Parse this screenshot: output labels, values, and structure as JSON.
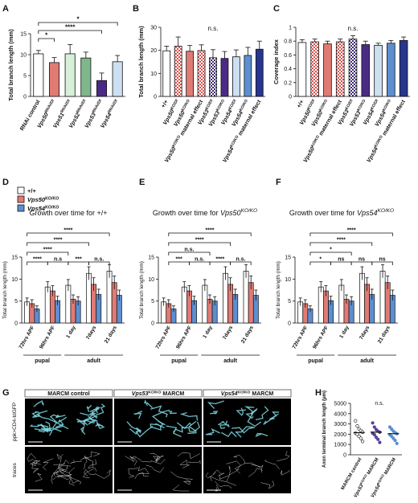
{
  "panels": {
    "A": "A",
    "B": "B",
    "C": "C",
    "D": "D",
    "E": "E",
    "F": "F",
    "G": "G",
    "H": "H"
  },
  "colors": {
    "white": "#ffffff",
    "salmon": "#e07b74",
    "mint": "#d8efd8",
    "green": "#7fb78a",
    "purple": "#4b2a86",
    "lightblue": "#cde0f2",
    "blue": "#5c8fd2",
    "navy": "#27358f",
    "checker_red": "#d9534f",
    "checker_purple": "#3d2a6e"
  },
  "legend_D": [
    {
      "label": "+/+",
      "color": "#ffffff"
    },
    {
      "label": "Vps50 KO/KO",
      "color": "#e07b74"
    },
    {
      "label": "Vps54 KO/KO",
      "color": "#5c8fd2"
    }
  ],
  "chart_data": [
    {
      "id": "A",
      "type": "bar",
      "ylabel": "Total branch length (mm)",
      "ylim": [
        0,
        15
      ],
      "yticks": [
        0,
        5,
        10,
        15
      ],
      "categories": [
        "RNAi control",
        "Vps50 RNAi/Df",
        "Vps51 RNAi/Df",
        "Vps52 RNAi/Df",
        "Vps53 RNAi/Df",
        "Vps54 RNAi/Df"
      ],
      "values": [
        10.2,
        8.1,
        10.2,
        9.2,
        3.8,
        8.3
      ],
      "errors": [
        0.8,
        1.2,
        2.2,
        1.4,
        1.8,
        1.5
      ],
      "fills": [
        "white",
        "salmon",
        "mint",
        "green",
        "purple",
        "lightblue"
      ],
      "significance": [
        {
          "from": 0,
          "to": 1,
          "label": "*"
        },
        {
          "from": 0,
          "to": 4,
          "label": "****"
        },
        {
          "from": 0,
          "to": 5,
          "label": "*"
        }
      ]
    },
    {
      "id": "B",
      "type": "bar",
      "ylabel": "Total branch length (mm)",
      "ylim": [
        0,
        30
      ],
      "yticks": [
        0,
        10,
        20,
        30
      ],
      "annotation": "n.s.",
      "categories": [
        "+/+",
        "Vps50 KO/Df",
        "Vps50 KO/KO",
        "Vps50 KO/KO maternal effect",
        "Vps53 KO/Df",
        "Vps53 KO/KO",
        "Vps54 KO/Df",
        "Vps54 KO/KO",
        "Vps54 KO/KO maternal effect"
      ],
      "values": [
        19.8,
        21.8,
        19.6,
        19.9,
        16.8,
        16.5,
        17.2,
        17.8,
        20.5
      ],
      "errors": [
        2.0,
        4.0,
        2.5,
        2.5,
        3.5,
        3.0,
        3.0,
        3.5,
        3.5
      ],
      "fills": [
        "white",
        "checker_red",
        "salmon",
        "checker_red",
        "checker_purple",
        "purple",
        "lightblue",
        "blue",
        "navy"
      ]
    },
    {
      "id": "C",
      "type": "bar",
      "ylabel": "Coverage index",
      "ylim": [
        0,
        1.0
      ],
      "yticks": [
        0.0,
        0.2,
        0.4,
        0.6,
        0.8,
        1.0
      ],
      "annotation": "n.s.",
      "categories": [
        "+/+",
        "Vps50 KO/Df",
        "Vps50 KO/KO",
        "Vps50 KO/KO maternal effect",
        "Vps53 KO/Df",
        "Vps53 KO/KO",
        "Vps54 KO/Df",
        "Vps54 KO/KO",
        "Vps54 KO/KO maternal effect"
      ],
      "values": [
        0.78,
        0.79,
        0.76,
        0.79,
        0.83,
        0.75,
        0.74,
        0.77,
        0.81
      ],
      "errors": [
        0.04,
        0.04,
        0.04,
        0.04,
        0.05,
        0.05,
        0.03,
        0.04,
        0.05
      ],
      "fills": [
        "white",
        "checker_red",
        "salmon",
        "checker_red",
        "checker_purple",
        "purple",
        "lightblue",
        "blue",
        "navy"
      ]
    },
    {
      "id": "D",
      "type": "bar",
      "title": "Growth over time for +/+",
      "ylabel": "Total branch length (mm)",
      "ylim": [
        0,
        15
      ],
      "yticks": [
        0,
        5,
        10,
        15
      ],
      "categories": [
        "72hrs APF",
        "96hrs APF",
        "1 day",
        "7days",
        "21 days"
      ],
      "groups": [
        {
          "label": "pupal",
          "from": 0,
          "to": 1
        },
        {
          "label": "adult",
          "from": 2,
          "to": 4
        }
      ],
      "series": [
        {
          "name": "+/+",
          "values": [
            4.8,
            8.2,
            8.6,
            11.3,
            11.8
          ],
          "errors": [
            0.9,
            1.2,
            1.3,
            1.5,
            1.5
          ]
        },
        {
          "name": "Vps50 KO/KO",
          "values": [
            4.4,
            7.3,
            5.4,
            8.8,
            9.2
          ],
          "errors": [
            0.9,
            1.2,
            1.0,
            1.5,
            1.5
          ]
        },
        {
          "name": "Vps54 KO/KO",
          "values": [
            3.2,
            5.1,
            5.0,
            6.5,
            6.3
          ],
          "errors": [
            0.7,
            1.0,
            1.0,
            1.2,
            1.2
          ]
        }
      ],
      "significance": [
        {
          "a": [
            0,
            0
          ],
          "b": [
            4,
            0
          ],
          "label": "****",
          "level": 4
        },
        {
          "a": [
            0,
            0
          ],
          "b": [
            3,
            0
          ],
          "label": "****",
          "level": 3
        },
        {
          "a": [
            0,
            0
          ],
          "b": [
            2,
            0
          ],
          "label": "****",
          "level": 2
        },
        {
          "a": [
            0,
            0
          ],
          "b": [
            1,
            0
          ],
          "label": "****",
          "level": 1
        },
        {
          "a": [
            1,
            0
          ],
          "b": [
            2,
            0
          ],
          "label": "n.s",
          "level": 1
        },
        {
          "a": [
            2,
            0
          ],
          "b": [
            3,
            0
          ],
          "label": "***",
          "level": 1
        },
        {
          "a": [
            3,
            0
          ],
          "b": [
            4,
            0
          ],
          "label": "n.s.",
          "level": 1
        }
      ]
    },
    {
      "id": "E",
      "type": "bar",
      "title": "Growth over time for Vps50 KO/KO",
      "ylabel": "Total branch length (mm)",
      "ylim": [
        0,
        15
      ],
      "yticks": [
        0,
        5,
        10,
        15
      ],
      "categories": [
        "72hrs APF",
        "96hrs APF",
        "1 day",
        "7days",
        "21 days"
      ],
      "groups": [
        {
          "label": "pupal",
          "from": 0,
          "to": 1
        },
        {
          "label": "adult",
          "from": 2,
          "to": 4
        }
      ],
      "series": [
        {
          "name": "+/+",
          "values": [
            4.8,
            8.2,
            8.6,
            11.3,
            11.8
          ],
          "errors": [
            0.9,
            1.2,
            1.3,
            1.5,
            1.5
          ]
        },
        {
          "name": "Vps50 KO/KO",
          "values": [
            4.4,
            7.3,
            5.4,
            8.8,
            9.2
          ],
          "errors": [
            0.9,
            1.2,
            1.0,
            1.5,
            1.5
          ]
        },
        {
          "name": "Vps54 KO/KO",
          "values": [
            3.2,
            5.1,
            5.0,
            6.5,
            6.3
          ],
          "errors": [
            0.7,
            1.0,
            1.0,
            1.2,
            1.2
          ]
        }
      ],
      "significance": [
        {
          "a": [
            0,
            1
          ],
          "b": [
            4,
            1
          ],
          "label": "****",
          "level": 4
        },
        {
          "a": [
            0,
            1
          ],
          "b": [
            3,
            1
          ],
          "label": "****",
          "level": 3
        },
        {
          "a": [
            0,
            1
          ],
          "b": [
            2,
            1
          ],
          "label": "n.s.",
          "level": 2
        },
        {
          "a": [
            0,
            1
          ],
          "b": [
            1,
            1
          ],
          "label": "***",
          "level": 1
        },
        {
          "a": [
            1,
            1
          ],
          "b": [
            2,
            1
          ],
          "label": "n.s.",
          "level": 1
        },
        {
          "a": [
            2,
            1
          ],
          "b": [
            3,
            1
          ],
          "label": "****",
          "level": 1
        },
        {
          "a": [
            3,
            1
          ],
          "b": [
            4,
            1
          ],
          "label": "n.s.",
          "level": 1
        }
      ]
    },
    {
      "id": "F",
      "type": "bar",
      "title": "Growth over time for Vps54 KO/KO",
      "ylabel": "Total branch length (mm)",
      "ylim": [
        0,
        15
      ],
      "yticks": [
        0,
        5,
        10,
        15
      ],
      "categories": [
        "72hrs APF",
        "96hrs APF",
        "1 day",
        "7days",
        "21 days"
      ],
      "groups": [
        {
          "label": "pupal",
          "from": 0,
          "to": 1
        },
        {
          "label": "adult",
          "from": 2,
          "to": 4
        }
      ],
      "series": [
        {
          "name": "+/+",
          "values": [
            4.8,
            8.2,
            8.6,
            11.3,
            11.8
          ],
          "errors": [
            0.9,
            1.2,
            1.3,
            1.5,
            1.5
          ]
        },
        {
          "name": "Vps50 KO/KO",
          "values": [
            4.4,
            7.3,
            5.4,
            8.8,
            9.2
          ],
          "errors": [
            0.9,
            1.2,
            1.0,
            1.5,
            1.5
          ]
        },
        {
          "name": "Vps54 KO/KO",
          "values": [
            3.2,
            5.1,
            5.0,
            6.5,
            6.3
          ],
          "errors": [
            0.7,
            1.0,
            1.0,
            1.2,
            1.2
          ]
        }
      ],
      "significance": [
        {
          "a": [
            0,
            2
          ],
          "b": [
            4,
            2
          ],
          "label": "****",
          "level": 4
        },
        {
          "a": [
            0,
            2
          ],
          "b": [
            3,
            2
          ],
          "label": "****",
          "level": 3
        },
        {
          "a": [
            0,
            2
          ],
          "b": [
            2,
            2
          ],
          "label": "*",
          "level": 2
        },
        {
          "a": [
            0,
            2
          ],
          "b": [
            1,
            2
          ],
          "label": "*",
          "level": 1
        },
        {
          "a": [
            1,
            2
          ],
          "b": [
            2,
            2
          ],
          "label": "ns",
          "level": 1
        },
        {
          "a": [
            2,
            2
          ],
          "b": [
            3,
            2
          ],
          "label": "ns",
          "level": 1
        },
        {
          "a": [
            3,
            2
          ],
          "b": [
            4,
            2
          ],
          "label": "ns",
          "level": 1
        }
      ]
    },
    {
      "id": "H",
      "type": "scatter",
      "ylabel": "Axon terminal branch length (μm)",
      "ylim": [
        0,
        5000
      ],
      "yticks": [
        0,
        1000,
        2000,
        3000,
        4000,
        5000
      ],
      "annotation": "n.s.",
      "categories": [
        "MARCM control",
        "Vps53 KO/KO MARCM",
        "Vps54 KO/KO MARCM"
      ],
      "medians": [
        2150,
        2200,
        2050
      ],
      "points": [
        [
          3300,
          2800,
          2500,
          2350,
          2200,
          2100,
          2000,
          1800,
          1600,
          1300
        ],
        [
          3100,
          2700,
          2450,
          2300,
          2200,
          2100,
          1950,
          1700,
          1500,
          1200
        ],
        [
          2700,
          2500,
          2300,
          2150,
          2050,
          1950,
          1800,
          1600,
          1400,
          1100
        ]
      ],
      "marker_colors": [
        "#ffffff",
        "#5a3f9e",
        "#5c8fd2"
      ]
    }
  ],
  "panel_G": {
    "columns": [
      "MARCM control",
      "Vps53 KO/KO MARCM",
      "Vps54 KO/KO MARCM"
    ],
    "rows": [
      "ppk>CD4-tdGFP",
      "traces"
    ]
  }
}
